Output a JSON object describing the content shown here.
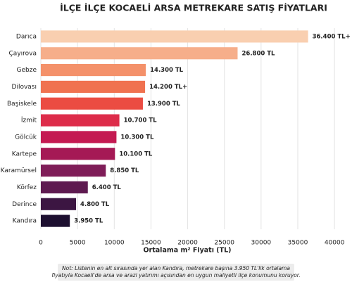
{
  "chart_data": {
    "type": "bar",
    "orientation": "horizontal",
    "title": "İLÇE İLÇE KOCAELİ ARSA METREKARE SATIŞ FİYATLARI",
    "x_label": "Ortalama m² Fiyatı (TL)",
    "categories": [
      "Darıca",
      "Çayırova",
      "Gebze",
      "Dilovası",
      "Başiskele",
      "İzmit",
      "Gölcük",
      "Kartepe",
      "Karamürsel",
      "Körfez",
      "Derince",
      "Kandıra"
    ],
    "values": [
      36400,
      26800,
      14300,
      14200,
      13900,
      10700,
      10300,
      10100,
      8850,
      6400,
      4800,
      3950
    ],
    "value_labels": [
      "36.400 TL+",
      "26.800 TL",
      "14.300 TL",
      "14.200 TL+",
      "13.900 TL",
      "10.700 TL",
      "10.300 TL",
      "10.100 TL",
      "8.850 TL",
      "6.400 TL",
      "4.800 TL",
      "3.950 TL"
    ],
    "colors": [
      "#f9cfb0",
      "#f6ae8a",
      "#f4916a",
      "#f07250",
      "#eb4c42",
      "#dd2c4a",
      "#c41a52",
      "#a51955",
      "#7f1d58",
      "#5e1a50",
      "#3c1642",
      "#1d0f30"
    ],
    "xlim": [
      0,
      42000
    ],
    "xticks": [
      0,
      5000,
      10000,
      15000,
      20000,
      25000,
      30000,
      35000,
      40000
    ],
    "grid": true,
    "note": [
      "Not: Listenin en alt sırasında yer alan Kandıra, metrekare başına 3.950 TL'lik ortalama",
      "fiyatıyla Kocaeli'de arsa ve arazi yatırımı açısından en uygun maliyetli ilçe konumunu koruyor."
    ]
  }
}
